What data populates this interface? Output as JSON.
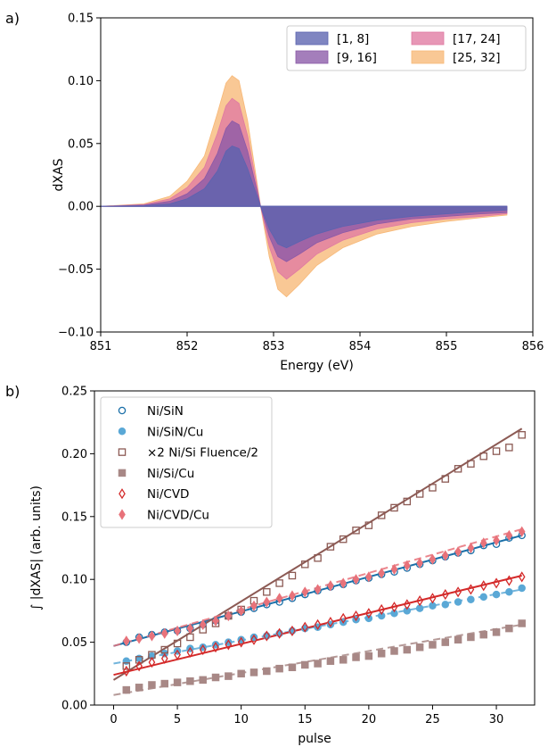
{
  "chart_data": [
    {
      "panel_label": "a)",
      "type": "area",
      "xlabel": "Energy (eV)",
      "ylabel": "dXAS",
      "xlim": [
        851,
        856
      ],
      "ylim": [
        -0.1,
        0.15
      ],
      "xticks": [
        "851",
        "852",
        "853",
        "854",
        "855",
        "856"
      ],
      "yticks": [
        "−0.10",
        "−0.05",
        "0.00",
        "0.05",
        "0.10",
        "0.15"
      ],
      "ytick_values": [
        -0.1,
        -0.05,
        0.0,
        0.05,
        0.1,
        0.15
      ],
      "xtick_values": [
        851,
        852,
        853,
        854,
        855,
        856
      ],
      "grid": false,
      "legend_position": "top-right",
      "legend_columns": 2,
      "x": [
        851.0,
        851.5,
        851.8,
        852.0,
        852.2,
        852.35,
        852.45,
        852.52,
        852.6,
        852.7,
        852.8,
        852.85,
        852.95,
        853.05,
        853.15,
        853.3,
        853.5,
        853.8,
        854.2,
        854.6,
        855.0,
        855.4,
        855.7
      ],
      "series": [
        {
          "name": "[1, 8]",
          "color": "#5b63b0",
          "values": [
            0,
            0.0005,
            0.002,
            0.006,
            0.014,
            0.028,
            0.044,
            0.048,
            0.046,
            0.03,
            0.01,
            0,
            -0.018,
            -0.03,
            -0.033,
            -0.028,
            -0.022,
            -0.016,
            -0.011,
            -0.008,
            -0.006,
            -0.004,
            -0.003
          ]
        },
        {
          "name": "[9, 16]",
          "color": "#8a5aa8",
          "values": [
            0,
            0.001,
            0.004,
            0.01,
            0.022,
            0.042,
            0.062,
            0.068,
            0.065,
            0.044,
            0.015,
            0,
            -0.024,
            -0.04,
            -0.044,
            -0.038,
            -0.029,
            -0.021,
            -0.014,
            -0.01,
            -0.008,
            -0.006,
            -0.005
          ]
        },
        {
          "name": "[17, 24]",
          "color": "#e07aa2",
          "values": [
            0,
            0.0015,
            0.006,
            0.015,
            0.031,
            0.058,
            0.08,
            0.086,
            0.082,
            0.056,
            0.019,
            0,
            -0.032,
            -0.052,
            -0.058,
            -0.05,
            -0.038,
            -0.027,
            -0.018,
            -0.013,
            -0.01,
            -0.008,
            -0.006
          ]
        },
        {
          "name": "[25, 32]",
          "color": "#f7b877",
          "values": [
            0,
            0.002,
            0.008,
            0.02,
            0.04,
            0.074,
            0.098,
            0.104,
            0.1,
            0.068,
            0.023,
            0,
            -0.04,
            -0.066,
            -0.072,
            -0.062,
            -0.047,
            -0.033,
            -0.022,
            -0.016,
            -0.012,
            -0.009,
            -0.007
          ]
        }
      ]
    },
    {
      "panel_label": "b)",
      "type": "scatter",
      "xlabel": "pulse",
      "ylabel": "∫ |dXAS| (arb. units)",
      "xlim": [
        -1.5,
        33
      ],
      "ylim": [
        0.0,
        0.25
      ],
      "xticks": [
        "0",
        "5",
        "10",
        "15",
        "20",
        "25",
        "30"
      ],
      "xtick_values": [
        0,
        5,
        10,
        15,
        20,
        25,
        30
      ],
      "yticks": [
        "0.00",
        "0.05",
        "0.10",
        "0.15",
        "0.20",
        "0.25"
      ],
      "ytick_values": [
        0.0,
        0.05,
        0.1,
        0.15,
        0.2,
        0.25
      ],
      "grid": false,
      "legend_position": "top-left",
      "series": [
        {
          "name": "Ni/SiN",
          "marker": "circle-open",
          "color": "#1a6fa8",
          "points": [
            [
              1,
              0.05
            ],
            [
              2,
              0.054
            ],
            [
              3,
              0.056
            ],
            [
              4,
              0.058
            ],
            [
              5,
              0.059
            ],
            [
              6,
              0.061
            ],
            [
              7,
              0.064
            ],
            [
              8,
              0.067
            ],
            [
              9,
              0.071
            ],
            [
              10,
              0.074
            ],
            [
              11,
              0.077
            ],
            [
              12,
              0.08
            ],
            [
              13,
              0.082
            ],
            [
              14,
              0.085
            ],
            [
              15,
              0.088
            ],
            [
              16,
              0.091
            ],
            [
              17,
              0.094
            ],
            [
              18,
              0.096
            ],
            [
              19,
              0.099
            ],
            [
              20,
              0.101
            ],
            [
              21,
              0.104
            ],
            [
              22,
              0.106
            ],
            [
              23,
              0.109
            ],
            [
              24,
              0.112
            ],
            [
              25,
              0.115
            ],
            [
              26,
              0.118
            ],
            [
              27,
              0.121
            ],
            [
              28,
              0.123
            ],
            [
              29,
              0.127
            ],
            [
              30,
              0.128
            ],
            [
              31,
              0.133
            ],
            [
              32,
              0.135
            ]
          ],
          "fit": {
            "x": [
              0,
              32
            ],
            "y": [
              0.047,
              0.135
            ],
            "style": "solid"
          }
        },
        {
          "name": "Ni/SiN/Cu",
          "marker": "circle-filled",
          "color": "#5aa8d6",
          "points": [
            [
              1,
              0.035
            ],
            [
              2,
              0.037
            ],
            [
              3,
              0.039
            ],
            [
              4,
              0.041
            ],
            [
              5,
              0.043
            ],
            [
              6,
              0.045
            ],
            [
              7,
              0.046
            ],
            [
              8,
              0.048
            ],
            [
              9,
              0.05
            ],
            [
              10,
              0.052
            ],
            [
              11,
              0.054
            ],
            [
              12,
              0.055
            ],
            [
              13,
              0.057
            ],
            [
              14,
              0.059
            ],
            [
              15,
              0.061
            ],
            [
              16,
              0.062
            ],
            [
              17,
              0.064
            ],
            [
              18,
              0.066
            ],
            [
              19,
              0.068
            ],
            [
              20,
              0.069
            ],
            [
              21,
              0.071
            ],
            [
              22,
              0.073
            ],
            [
              23,
              0.075
            ],
            [
              24,
              0.077
            ],
            [
              25,
              0.079
            ],
            [
              26,
              0.08
            ],
            [
              27,
              0.082
            ],
            [
              28,
              0.084
            ],
            [
              29,
              0.086
            ],
            [
              30,
              0.088
            ],
            [
              31,
              0.09
            ],
            [
              32,
              0.093
            ]
          ],
          "fit": {
            "x": [
              0,
              32
            ],
            "y": [
              0.033,
              0.092
            ],
            "style": "dashed"
          }
        },
        {
          "name": "×2 Ni/Si Fluence/2",
          "marker": "square-open",
          "color": "#8c5a54",
          "points": [
            [
              1,
              0.031
            ],
            [
              2,
              0.036
            ],
            [
              3,
              0.04
            ],
            [
              4,
              0.044
            ],
            [
              5,
              0.049
            ],
            [
              6,
              0.054
            ],
            [
              7,
              0.06
            ],
            [
              8,
              0.065
            ],
            [
              9,
              0.071
            ],
            [
              10,
              0.076
            ],
            [
              11,
              0.083
            ],
            [
              12,
              0.09
            ],
            [
              13,
              0.097
            ],
            [
              14,
              0.103
            ],
            [
              15,
              0.112
            ],
            [
              16,
              0.117
            ],
            [
              17,
              0.126
            ],
            [
              18,
              0.132
            ],
            [
              19,
              0.139
            ],
            [
              20,
              0.143
            ],
            [
              21,
              0.151
            ],
            [
              22,
              0.157
            ],
            [
              23,
              0.162
            ],
            [
              24,
              0.168
            ],
            [
              25,
              0.173
            ],
            [
              26,
              0.18
            ],
            [
              27,
              0.188
            ],
            [
              28,
              0.192
            ],
            [
              29,
              0.198
            ],
            [
              30,
              0.202
            ],
            [
              31,
              0.205
            ],
            [
              32,
              0.215
            ]
          ],
          "fit": {
            "x": [
              0,
              32
            ],
            "y": [
              0.02,
              0.22
            ],
            "style": "solid"
          }
        },
        {
          "name": "Ni/Si/Cu",
          "marker": "square-filled",
          "color": "#a88886",
          "points": [
            [
              1,
              0.012
            ],
            [
              2,
              0.014
            ],
            [
              3,
              0.016
            ],
            [
              4,
              0.017
            ],
            [
              5,
              0.018
            ],
            [
              6,
              0.019
            ],
            [
              7,
              0.02
            ],
            [
              8,
              0.022
            ],
            [
              9,
              0.023
            ],
            [
              10,
              0.025
            ],
            [
              11,
              0.026
            ],
            [
              12,
              0.027
            ],
            [
              13,
              0.029
            ],
            [
              14,
              0.03
            ],
            [
              15,
              0.032
            ],
            [
              16,
              0.033
            ],
            [
              17,
              0.035
            ],
            [
              18,
              0.036
            ],
            [
              19,
              0.038
            ],
            [
              20,
              0.039
            ],
            [
              21,
              0.041
            ],
            [
              22,
              0.043
            ],
            [
              23,
              0.044
            ],
            [
              24,
              0.046
            ],
            [
              25,
              0.048
            ],
            [
              26,
              0.05
            ],
            [
              27,
              0.052
            ],
            [
              28,
              0.054
            ],
            [
              29,
              0.056
            ],
            [
              30,
              0.058
            ],
            [
              31,
              0.061
            ],
            [
              32,
              0.065
            ]
          ],
          "fit": {
            "x": [
              0,
              32
            ],
            "y": [
              0.008,
              0.064
            ],
            "style": "dashed"
          }
        },
        {
          "name": "Ni/CVD",
          "marker": "diamond-open",
          "color": "#d42a2a",
          "points": [
            [
              1,
              0.027
            ],
            [
              2,
              0.031
            ],
            [
              3,
              0.034
            ],
            [
              4,
              0.037
            ],
            [
              5,
              0.04
            ],
            [
              6,
              0.042
            ],
            [
              7,
              0.044
            ],
            [
              8,
              0.046
            ],
            [
              9,
              0.048
            ],
            [
              10,
              0.05
            ],
            [
              11,
              0.052
            ],
            [
              12,
              0.055
            ],
            [
              13,
              0.057
            ],
            [
              14,
              0.059
            ],
            [
              15,
              0.062
            ],
            [
              16,
              0.064
            ],
            [
              17,
              0.066
            ],
            [
              18,
              0.069
            ],
            [
              19,
              0.071
            ],
            [
              20,
              0.073
            ],
            [
              21,
              0.076
            ],
            [
              22,
              0.078
            ],
            [
              23,
              0.08
            ],
            [
              24,
              0.083
            ],
            [
              25,
              0.085
            ],
            [
              26,
              0.088
            ],
            [
              27,
              0.09
            ],
            [
              28,
              0.092
            ],
            [
              29,
              0.095
            ],
            [
              30,
              0.097
            ],
            [
              31,
              0.099
            ],
            [
              32,
              0.102
            ]
          ],
          "fit": {
            "x": [
              0,
              32
            ],
            "y": [
              0.024,
              0.103
            ],
            "style": "solid"
          }
        },
        {
          "name": "Ni/CVD/Cu",
          "marker": "diamond-filled",
          "color": "#e8727a",
          "points": [
            [
              1,
              0.051
            ],
            [
              2,
              0.053
            ],
            [
              3,
              0.055
            ],
            [
              4,
              0.057
            ],
            [
              5,
              0.059
            ],
            [
              6,
              0.061
            ],
            [
              7,
              0.064
            ],
            [
              8,
              0.067
            ],
            [
              9,
              0.071
            ],
            [
              10,
              0.075
            ],
            [
              11,
              0.079
            ],
            [
              12,
              0.082
            ],
            [
              13,
              0.085
            ],
            [
              14,
              0.087
            ],
            [
              15,
              0.09
            ],
            [
              16,
              0.092
            ],
            [
              17,
              0.095
            ],
            [
              18,
              0.097
            ],
            [
              19,
              0.1
            ],
            [
              20,
              0.102
            ],
            [
              21,
              0.105
            ],
            [
              22,
              0.108
            ],
            [
              23,
              0.111
            ],
            [
              24,
              0.113
            ],
            [
              25,
              0.116
            ],
            [
              26,
              0.119
            ],
            [
              27,
              0.122
            ],
            [
              28,
              0.125
            ],
            [
              29,
              0.129
            ],
            [
              30,
              0.131
            ],
            [
              31,
              0.135
            ],
            [
              32,
              0.138
            ]
          ],
          "fit": {
            "x": [
              0,
              32
            ],
            "y": [
              0.047,
              0.14
            ],
            "style": "dashed"
          }
        }
      ]
    }
  ]
}
